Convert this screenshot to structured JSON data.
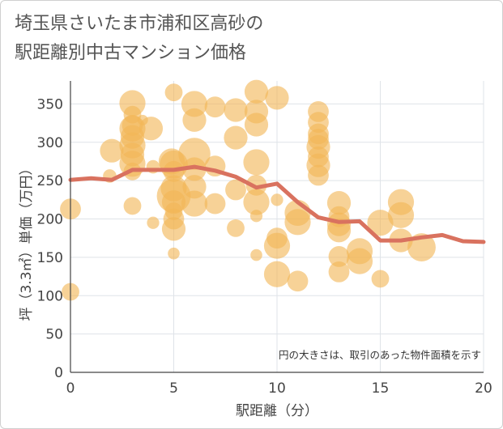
{
  "page": {
    "title_line1": "埼玉県さいたま市浦和区高砂の",
    "title_line2": "駅距離別中古マンション価格"
  },
  "chart_data": {
    "type": "scatter",
    "title": "埼玉県さいたま市浦和区高砂の駅距離別中古マンション価格",
    "xlabel": "駅距離（分）",
    "ylabel": "坪（3.3㎡）単価（万円）",
    "xlim": [
      0,
      20
    ],
    "ylim": [
      0,
      380
    ],
    "xticks": [
      0,
      5,
      10,
      15,
      20
    ],
    "yticks": [
      0,
      50,
      100,
      150,
      200,
      250,
      300,
      350
    ],
    "grid": true,
    "annotation": "円の大きさは、取引のあった物件面積を示す",
    "colors": {
      "bubble": "#f2b657",
      "line": "#d9725f"
    },
    "bubbles": [
      {
        "x": 0,
        "y": 213,
        "s": 3
      },
      {
        "x": 0,
        "y": 105,
        "s": 2
      },
      {
        "x": 1.9,
        "y": 256,
        "s": 1
      },
      {
        "x": 2,
        "y": 289,
        "s": 4
      },
      {
        "x": 3,
        "y": 351,
        "s": 5
      },
      {
        "x": 3,
        "y": 336,
        "s": 2
      },
      {
        "x": 3,
        "y": 322,
        "s": 3
      },
      {
        "x": 3,
        "y": 318,
        "s": 5
      },
      {
        "x": 3,
        "y": 307,
        "s": 4
      },
      {
        "x": 3,
        "y": 296,
        "s": 5
      },
      {
        "x": 3,
        "y": 284,
        "s": 4
      },
      {
        "x": 3,
        "y": 272,
        "s": 5
      },
      {
        "x": 3,
        "y": 262,
        "s": 2
      },
      {
        "x": 3,
        "y": 217,
        "s": 2
      },
      {
        "x": 3.5,
        "y": 329,
        "s": 0.5
      },
      {
        "x": 3.9,
        "y": 318,
        "s": 4
      },
      {
        "x": 4,
        "y": 268,
        "s": 1
      },
      {
        "x": 4,
        "y": 195,
        "s": 0.8
      },
      {
        "x": 5,
        "y": 365,
        "s": 2
      },
      {
        "x": 4.9,
        "y": 275,
        "s": 5
      },
      {
        "x": 5,
        "y": 271,
        "s": 6
      },
      {
        "x": 5,
        "y": 262,
        "s": 3
      },
      {
        "x": 5,
        "y": 240,
        "s": 5
      },
      {
        "x": 5,
        "y": 230,
        "s": 9
      },
      {
        "x": 5,
        "y": 222,
        "s": 4
      },
      {
        "x": 5,
        "y": 210,
        "s": 2
      },
      {
        "x": 5,
        "y": 200,
        "s": 3
      },
      {
        "x": 5,
        "y": 187,
        "s": 4
      },
      {
        "x": 5,
        "y": 155,
        "s": 0.7
      },
      {
        "x": 6,
        "y": 350,
        "s": 5
      },
      {
        "x": 6,
        "y": 329,
        "s": 4
      },
      {
        "x": 6,
        "y": 285,
        "s": 8
      },
      {
        "x": 6,
        "y": 265,
        "s": 4
      },
      {
        "x": 6,
        "y": 242,
        "s": 4
      },
      {
        "x": 6,
        "y": 220,
        "s": 5
      },
      {
        "x": 7,
        "y": 346,
        "s": 3
      },
      {
        "x": 7,
        "y": 269,
        "s": 3
      },
      {
        "x": 7,
        "y": 220,
        "s": 3
      },
      {
        "x": 8,
        "y": 342,
        "s": 4
      },
      {
        "x": 8,
        "y": 306,
        "s": 4
      },
      {
        "x": 8,
        "y": 238,
        "s": 3
      },
      {
        "x": 8,
        "y": 188,
        "s": 2
      },
      {
        "x": 9,
        "y": 366,
        "s": 4
      },
      {
        "x": 9,
        "y": 340,
        "s": 4
      },
      {
        "x": 9,
        "y": 323,
        "s": 4
      },
      {
        "x": 9,
        "y": 274,
        "s": 5
      },
      {
        "x": 9,
        "y": 244,
        "s": 3
      },
      {
        "x": 9,
        "y": 222,
        "s": 5
      },
      {
        "x": 9,
        "y": 204,
        "s": 0.8
      },
      {
        "x": 9,
        "y": 153,
        "s": 0.7
      },
      {
        "x": 10,
        "y": 358,
        "s": 4
      },
      {
        "x": 10,
        "y": 225,
        "s": 0.8
      },
      {
        "x": 10,
        "y": 175,
        "s": 3
      },
      {
        "x": 10,
        "y": 165,
        "s": 5
      },
      {
        "x": 10,
        "y": 128,
        "s": 5
      },
      {
        "x": 11,
        "y": 208,
        "s": 5
      },
      {
        "x": 11,
        "y": 196,
        "s": 5
      },
      {
        "x": 11,
        "y": 119,
        "s": 3
      },
      {
        "x": 12,
        "y": 340,
        "s": 3
      },
      {
        "x": 12,
        "y": 326,
        "s": 3
      },
      {
        "x": 12,
        "y": 311,
        "s": 3
      },
      {
        "x": 12,
        "y": 304,
        "s": 3
      },
      {
        "x": 12,
        "y": 294,
        "s": 4
      },
      {
        "x": 12,
        "y": 281,
        "s": 3
      },
      {
        "x": 12,
        "y": 270,
        "s": 4
      },
      {
        "x": 12,
        "y": 257,
        "s": 3
      },
      {
        "x": 13,
        "y": 221,
        "s": 4
      },
      {
        "x": 13,
        "y": 203,
        "s": 3
      },
      {
        "x": 13,
        "y": 193,
        "s": 4
      },
      {
        "x": 13,
        "y": 185,
        "s": 4
      },
      {
        "x": 13,
        "y": 151,
        "s": 3
      },
      {
        "x": 13,
        "y": 131,
        "s": 3
      },
      {
        "x": 14,
        "y": 158,
        "s": 5
      },
      {
        "x": 14,
        "y": 145,
        "s": 5
      },
      {
        "x": 15,
        "y": 195,
        "s": 5
      },
      {
        "x": 15,
        "y": 122,
        "s": 2
      },
      {
        "x": 16,
        "y": 222,
        "s": 5
      },
      {
        "x": 16,
        "y": 205,
        "s": 5
      },
      {
        "x": 16,
        "y": 172,
        "s": 4
      },
      {
        "x": 17,
        "y": 163,
        "s": 6
      }
    ],
    "average_line": {
      "x": [
        0,
        1,
        2,
        3,
        4,
        5,
        6,
        7,
        8,
        9,
        10,
        11,
        12,
        13,
        14,
        15,
        16,
        17,
        18,
        19,
        20
      ],
      "y": [
        251,
        253,
        251,
        264,
        264,
        264,
        268,
        263,
        255,
        241,
        246,
        222,
        202,
        196,
        197,
        172,
        172,
        176,
        179,
        171,
        170
      ]
    }
  }
}
